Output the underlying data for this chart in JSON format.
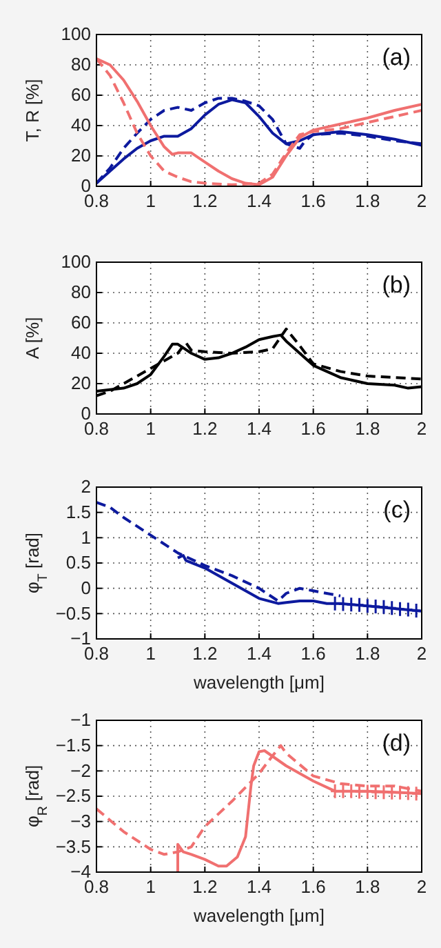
{
  "chart_data": [
    {
      "type": "line",
      "ylabel": "T, R  [%]",
      "annotations": [
        "(a)"
      ],
      "xlim": [
        0.8,
        2
      ],
      "xticks": [
        0.8,
        1,
        1.2,
        1.4,
        1.6,
        1.8,
        2
      ],
      "ylim": [
        0,
        100
      ],
      "yticks": [
        0,
        20,
        40,
        60,
        80,
        100
      ],
      "grid": true,
      "series": [
        {
          "color": "#0d1a9e",
          "line_style": "solid",
          "x": [
            0.8,
            0.85,
            0.9,
            0.95,
            1.0,
            1.05,
            1.1,
            1.15,
            1.2,
            1.25,
            1.3,
            1.35,
            1.4,
            1.45,
            1.5,
            1.55,
            1.6,
            1.7,
            1.8,
            1.9,
            2.0
          ],
          "values": [
            2,
            10,
            18,
            25,
            30,
            33,
            33,
            38,
            47,
            54,
            57,
            55,
            46,
            35,
            28,
            30,
            34,
            36,
            34,
            31,
            27
          ]
        },
        {
          "color": "#0d1a9e",
          "line_style": "dashed",
          "x": [
            0.8,
            0.85,
            0.9,
            0.95,
            1.0,
            1.05,
            1.1,
            1.15,
            1.2,
            1.25,
            1.3,
            1.35,
            1.4,
            1.45,
            1.5,
            1.55,
            1.57,
            1.6,
            1.7,
            1.8,
            1.9,
            2.0
          ],
          "values": [
            2,
            12,
            25,
            35,
            44,
            50,
            52,
            50,
            55,
            58,
            58,
            56,
            53,
            44,
            28,
            25,
            30,
            34,
            35,
            33,
            30,
            28
          ]
        },
        {
          "color": "#f07070",
          "line_style": "solid",
          "x": [
            0.8,
            0.85,
            0.9,
            0.95,
            1.0,
            1.05,
            1.08,
            1.1,
            1.15,
            1.2,
            1.25,
            1.3,
            1.35,
            1.4,
            1.45,
            1.5,
            1.55,
            1.6,
            1.7,
            1.8,
            1.9,
            2.0
          ],
          "values": [
            84,
            80,
            70,
            56,
            40,
            26,
            21,
            22,
            22,
            16,
            10,
            5,
            2,
            1,
            6,
            20,
            32,
            37,
            41,
            45,
            50,
            54
          ]
        },
        {
          "color": "#f07070",
          "line_style": "dashed",
          "x": [
            0.8,
            0.85,
            0.9,
            0.95,
            1.0,
            1.05,
            1.1,
            1.15,
            1.2,
            1.3,
            1.4,
            1.45,
            1.5,
            1.55,
            1.6,
            1.7,
            1.8,
            1.9,
            2.0
          ],
          "values": [
            84,
            73,
            55,
            35,
            20,
            10,
            6,
            3,
            2,
            1,
            2,
            8,
            22,
            34,
            36,
            38,
            42,
            46,
            50
          ]
        }
      ]
    },
    {
      "type": "line",
      "ylabel": "A  [%]",
      "annotations": [
        "(b)"
      ],
      "xlim": [
        0.8,
        2
      ],
      "xticks": [
        0.8,
        1,
        1.2,
        1.4,
        1.6,
        1.8,
        2
      ],
      "ylim": [
        0,
        100
      ],
      "yticks": [
        0,
        20,
        40,
        60,
        80,
        100
      ],
      "grid": true,
      "series": [
        {
          "color": "#000000",
          "line_style": "solid",
          "x": [
            0.8,
            0.85,
            0.9,
            0.95,
            1.0,
            1.05,
            1.08,
            1.1,
            1.15,
            1.2,
            1.25,
            1.3,
            1.35,
            1.4,
            1.45,
            1.48,
            1.5,
            1.55,
            1.6,
            1.65,
            1.7,
            1.8,
            1.9,
            1.95,
            2.0
          ],
          "values": [
            15,
            16,
            17,
            20,
            26,
            38,
            46,
            46,
            40,
            36,
            37,
            40,
            44,
            49,
            51,
            52,
            48,
            40,
            32,
            28,
            24,
            20,
            19,
            17,
            18
          ]
        },
        {
          "color": "#000000",
          "line_style": "dashed",
          "x": [
            0.8,
            0.85,
            0.9,
            0.95,
            1.0,
            1.05,
            1.1,
            1.13,
            1.15,
            1.2,
            1.3,
            1.4,
            1.45,
            1.5,
            1.55,
            1.6,
            1.7,
            1.8,
            1.9,
            2.0
          ],
          "values": [
            12,
            15,
            20,
            25,
            30,
            35,
            40,
            47,
            42,
            41,
            40,
            41,
            43,
            56,
            45,
            33,
            28,
            25,
            24,
            23
          ]
        }
      ]
    },
    {
      "type": "line",
      "ylabel": "φ$_{T}$  [rad]",
      "xlabel": "wavelength [μm]",
      "annotations": [
        "(c)"
      ],
      "xlim": [
        0.8,
        2
      ],
      "xticks": [
        0.8,
        1,
        1.2,
        1.4,
        1.6,
        1.8,
        2
      ],
      "ylim": [
        -1,
        2
      ],
      "yticks": [
        -1,
        -0.5,
        0,
        0.5,
        1,
        1.5,
        2
      ],
      "grid": true,
      "series": [
        {
          "color": "#0d1a9e",
          "line_style": "solid",
          "x": [
            1.1,
            1.12,
            1.13,
            1.2,
            1.3,
            1.4,
            1.47,
            1.5,
            1.55,
            1.6,
            1.65,
            1.7,
            1.8,
            1.9,
            2.0
          ],
          "values": [
            0.6,
            0.65,
            0.55,
            0.4,
            0.1,
            -0.2,
            -0.3,
            -0.28,
            -0.25,
            -0.25,
            -0.3,
            -0.3,
            -0.35,
            -0.4,
            -0.45
          ]
        },
        {
          "color": "#0d1a9e",
          "line_style": "dashed",
          "x": [
            0.8,
            0.85,
            0.9,
            1.0,
            1.1,
            1.2,
            1.3,
            1.4,
            1.47,
            1.5,
            1.55,
            1.6,
            1.7
          ],
          "values": [
            1.7,
            1.6,
            1.4,
            1.05,
            0.7,
            0.45,
            0.25,
            0.0,
            -0.25,
            -0.1,
            0,
            -0.05,
            -0.15
          ]
        },
        {
          "type": "scatter",
          "marker": "cross",
          "color": "#0d1a9e",
          "x": [
            1.68,
            1.71,
            1.74,
            1.77,
            1.8,
            1.83,
            1.86,
            1.89,
            1.92,
            1.95,
            1.98
          ],
          "values": [
            -0.3,
            -0.31,
            -0.32,
            -0.33,
            -0.35,
            -0.36,
            -0.37,
            -0.39,
            -0.41,
            -0.42,
            -0.44
          ]
        }
      ]
    },
    {
      "type": "line",
      "ylabel": "φ$_{R}$  [rad]",
      "xlabel": "wavelength [μm]",
      "annotations": [
        "(d)"
      ],
      "xlim": [
        0.8,
        2
      ],
      "xticks": [
        0.8,
        1,
        1.2,
        1.4,
        1.6,
        1.8,
        2
      ],
      "ylim": [
        -4,
        -1
      ],
      "yticks": [
        -4,
        -3.5,
        -3,
        -2.5,
        -2,
        -1.5,
        -1
      ],
      "grid": true,
      "series": [
        {
          "color": "#f07070",
          "line_style": "solid",
          "x": [
            1.1,
            1.1,
            1.12,
            1.15,
            1.2,
            1.25,
            1.28,
            1.32,
            1.35,
            1.37,
            1.38,
            1.4,
            1.42,
            1.5,
            1.6,
            1.68,
            1.8,
            1.9,
            2.0
          ],
          "values": [
            -4,
            -3.45,
            -3.6,
            -3.65,
            -3.75,
            -3.88,
            -3.88,
            -3.7,
            -3.3,
            -2.3,
            -1.9,
            -1.62,
            -1.6,
            -1.9,
            -2.2,
            -2.4,
            -2.4,
            -2.42,
            -2.45
          ]
        },
        {
          "color": "#f07070",
          "line_style": "dashed",
          "x": [
            0.8,
            0.9,
            1.0,
            1.05,
            1.1,
            1.15,
            1.2,
            1.3,
            1.4,
            1.45,
            1.48,
            1.5,
            1.6,
            1.7,
            1.8,
            1.9,
            2.0
          ],
          "values": [
            -2.75,
            -3.2,
            -3.55,
            -3.65,
            -3.6,
            -3.5,
            -3.1,
            -2.6,
            -2.05,
            -1.7,
            -1.5,
            -1.65,
            -2.1,
            -2.25,
            -2.3,
            -2.3,
            -2.4
          ]
        },
        {
          "type": "scatter",
          "marker": "cross",
          "color": "#f07070",
          "x": [
            1.68,
            1.71,
            1.74,
            1.77,
            1.8,
            1.83,
            1.86,
            1.89,
            1.92,
            1.95,
            1.98
          ],
          "values": [
            -2.4,
            -2.4,
            -2.4,
            -2.41,
            -2.41,
            -2.42,
            -2.42,
            -2.43,
            -2.43,
            -2.44,
            -2.45
          ]
        }
      ]
    }
  ]
}
